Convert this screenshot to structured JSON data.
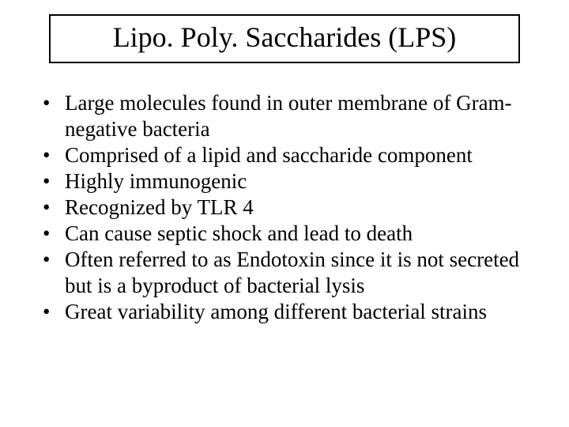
{
  "slide": {
    "title": "Lipo. Poly. Saccharides (LPS)",
    "title_fontsize": 36,
    "title_border_color": "#000000",
    "title_border_width": 2,
    "background_color": "#ffffff",
    "text_color": "#000000",
    "bullet_fontsize": 27,
    "bullets": [
      "Large molecules found in outer membrane of Gram-negative bacteria",
      "Comprised of a lipid and saccharide component",
      "Highly immunogenic",
      "Recognized by TLR 4",
      "Can cause septic shock and lead to death",
      "Often referred to as Endotoxin since it is not secreted but is a byproduct of bacterial lysis",
      "Great variability among different bacterial strains"
    ]
  }
}
